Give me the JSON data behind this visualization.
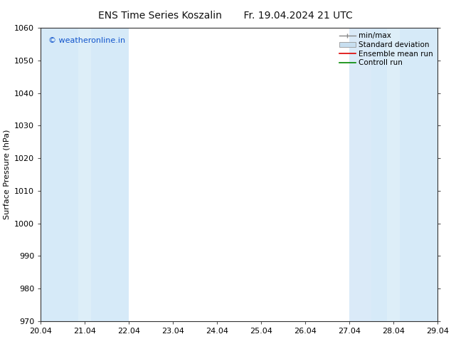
{
  "title_left": "ENS Time Series Koszalin",
  "title_right": "Fr. 19.04.2024 21 UTC",
  "ylabel": "Surface Pressure (hPa)",
  "ylim": [
    970,
    1060
  ],
  "yticks": [
    970,
    980,
    990,
    1000,
    1010,
    1020,
    1030,
    1040,
    1050,
    1060
  ],
  "xlim_start": 0,
  "xlim_end": 9,
  "xtick_positions": [
    0,
    1,
    2,
    3,
    4,
    5,
    6,
    7,
    8,
    9
  ],
  "xtick_labels": [
    "20.04",
    "21.04",
    "22.04",
    "23.04",
    "24.04",
    "25.04",
    "26.04",
    "27.04",
    "28.04",
    "29.04"
  ],
  "watermark": "© weatheronline.in",
  "watermark_color": "#1155cc",
  "background_color": "#ffffff",
  "plot_bg_color": "#ffffff",
  "shaded_columns": [
    {
      "x_start": 0.0,
      "x_end": 0.5,
      "color": "#d6eaf8"
    },
    {
      "x_start": 0.5,
      "x_end": 1.0,
      "color": "#e8f4fb"
    },
    {
      "x_start": 1.0,
      "x_end": 1.5,
      "color": "#e8f4fb"
    },
    {
      "x_start": 1.5,
      "x_end": 2.0,
      "color": "#d6eaf8"
    },
    {
      "x_start": 7.0,
      "x_end": 7.5,
      "color": "#d6eaf8"
    },
    {
      "x_start": 7.5,
      "x_end": 8.0,
      "color": "#e8f4fb"
    },
    {
      "x_start": 8.0,
      "x_end": 8.5,
      "color": "#e8f4fb"
    },
    {
      "x_start": 8.5,
      "x_end": 9.0,
      "color": "#d6eaf8"
    }
  ],
  "legend_entries": [
    {
      "label": "min/max",
      "color": "#888888",
      "style": "errorbar"
    },
    {
      "label": "Standard deviation",
      "color": "#c8dff0",
      "style": "box"
    },
    {
      "label": "Ensemble mean run",
      "color": "#dd0000",
      "style": "line"
    },
    {
      "label": "Controll run",
      "color": "#008800",
      "style": "line"
    }
  ],
  "title_fontsize": 10,
  "axis_fontsize": 8,
  "tick_fontsize": 8,
  "legend_fontsize": 7.5
}
